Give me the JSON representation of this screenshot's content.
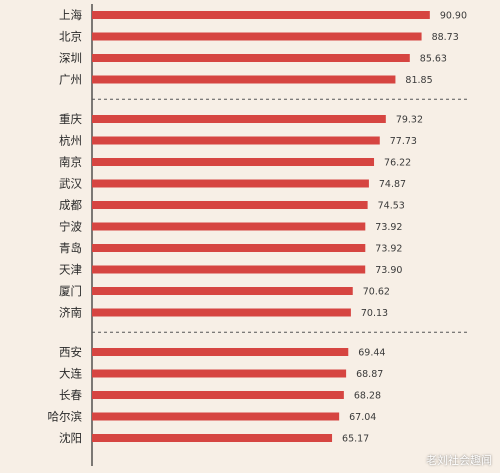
{
  "chart_data": {
    "type": "bar",
    "orientation": "horizontal",
    "categories": [
      "上海",
      "北京",
      "深圳",
      "广州",
      "重庆",
      "杭州",
      "南京",
      "武汉",
      "成都",
      "宁波",
      "青岛",
      "天津",
      "厦门",
      "济南",
      "西安",
      "大连",
      "长春",
      "哈尔滨",
      "沈阳"
    ],
    "values": [
      90.9,
      88.73,
      85.63,
      81.85,
      79.32,
      77.73,
      76.22,
      74.87,
      74.53,
      73.92,
      73.92,
      73.9,
      70.62,
      70.13,
      69.44,
      68.87,
      68.28,
      67.04,
      65.17
    ],
    "value_labels": [
      "90.90",
      "88.73",
      "85.63",
      "81.85",
      "79.32",
      "77.73",
      "76.22",
      "74.87",
      "74.53",
      "73.92",
      "73.92",
      "73.90",
      "70.62",
      "70.13",
      "69.44",
      "68.87",
      "68.28",
      "67.04",
      "65.17"
    ],
    "group_separators_after_index": [
      3,
      13
    ],
    "xlim": [
      0,
      100
    ],
    "bar_color": "#d64541",
    "grid": false,
    "title": "",
    "xlabel": "",
    "ylabel": ""
  },
  "watermark": "老刘社会趣闻",
  "colors": {
    "background": "#f7efe6",
    "bar": "#d64541",
    "axis": "#2a2a2a",
    "separator": "#555555"
  }
}
